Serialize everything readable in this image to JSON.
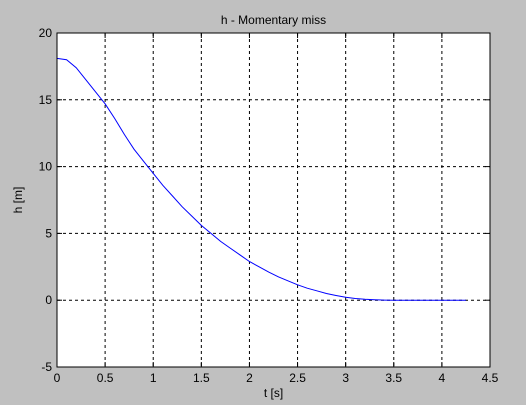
{
  "chart_data": {
    "type": "line",
    "title": "h - Momentary miss",
    "xlabel": "t [s]",
    "ylabel": "h [m]",
    "xlim": [
      0,
      4.5
    ],
    "ylim": [
      -5,
      20
    ],
    "xticks": [
      0,
      0.5,
      1,
      1.5,
      2,
      2.5,
      3,
      3.5,
      4,
      4.5
    ],
    "xtick_labels": [
      "0",
      "0.5",
      "1",
      "1.5",
      "2",
      "2.5",
      "3",
      "3.5",
      "4",
      "4.5"
    ],
    "yticks": [
      -5,
      0,
      5,
      10,
      15,
      20
    ],
    "ytick_labels": [
      "-5",
      "0",
      "5",
      "10",
      "15",
      "20"
    ],
    "grid": true,
    "grid_style": "dashed",
    "series": [
      {
        "color": "#0000ff",
        "x": [
          0,
          0.1,
          0.2,
          0.3,
          0.4,
          0.5,
          0.6,
          0.7,
          0.8,
          0.9,
          1.0,
          1.1,
          1.2,
          1.3,
          1.4,
          1.5,
          1.6,
          1.7,
          1.8,
          1.9,
          2.0,
          2.1,
          2.2,
          2.3,
          2.4,
          2.5,
          2.6,
          2.7,
          2.8,
          2.9,
          3.0,
          3.1,
          3.2,
          3.3,
          3.4,
          3.5,
          3.6,
          3.8,
          4.0,
          4.2,
          4.25
        ],
        "y": [
          18.1,
          18.0,
          17.4,
          16.5,
          15.6,
          14.7,
          13.6,
          12.4,
          11.3,
          10.4,
          9.5,
          8.6,
          7.8,
          7.0,
          6.3,
          5.6,
          5.0,
          4.4,
          3.9,
          3.4,
          2.9,
          2.5,
          2.1,
          1.75,
          1.45,
          1.15,
          0.9,
          0.7,
          0.5,
          0.35,
          0.22,
          0.13,
          0.07,
          0.03,
          0.01,
          0,
          0,
          0,
          0,
          0,
          0
        ]
      }
    ]
  }
}
